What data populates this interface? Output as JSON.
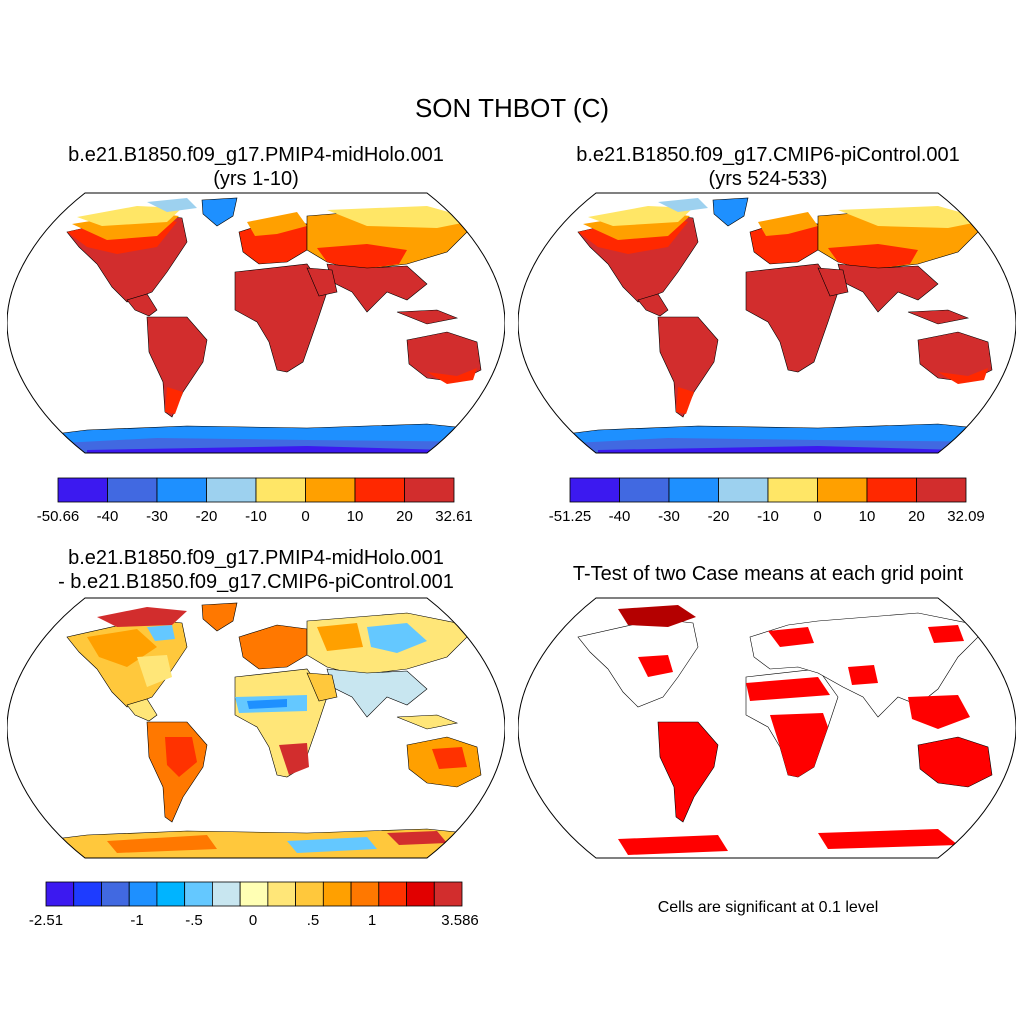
{
  "main_title": "SON THBOT (C)",
  "panels": [
    {
      "id": "case1",
      "title_line1": "b.e21.B1850.f09_g17.PMIP4-midHolo.001",
      "title_line2": "(yrs 1-10)",
      "colorbar": {
        "colors": [
          "#3c19f0",
          "#4169e1",
          "#1e90ff",
          "#9dd1ef",
          "#ffe666",
          "#ffa000",
          "#ff2800",
          "#d22d2d"
        ],
        "labels": [
          "-50.66",
          "-40",
          "-30",
          "-20",
          "-10",
          "0",
          "10",
          "20",
          "32.61"
        ]
      }
    },
    {
      "id": "case2",
      "title_line1": "b.e21.B1850.f09_g17.CMIP6-piControl.001",
      "title_line2": "(yrs 524-533)",
      "colorbar": {
        "colors": [
          "#3c19f0",
          "#4169e1",
          "#1e90ff",
          "#9dd1ef",
          "#ffe666",
          "#ffa000",
          "#ff2800",
          "#d22d2d"
        ],
        "labels": [
          "-51.25",
          "-40",
          "-30",
          "-20",
          "-10",
          "0",
          "10",
          "20",
          "32.09"
        ]
      }
    },
    {
      "id": "diff",
      "title_line1": "b.e21.B1850.f09_g17.PMIP4-midHolo.001",
      "title_line2": "- b.e21.B1850.f09_g17.CMIP6-piControl.001",
      "colorbar": {
        "colors": [
          "#3c19f0",
          "#1e3cff",
          "#4169e1",
          "#1e90ff",
          "#00b4ff",
          "#64c8ff",
          "#c8e6f0",
          "#ffffb4",
          "#ffe678",
          "#ffc83c",
          "#ffa000",
          "#ff7800",
          "#ff3200",
          "#e10000",
          "#d22d2d"
        ],
        "labels": [
          "-2.51",
          "-1",
          "-.5",
          "0",
          ".5",
          "1",
          "3.586"
        ]
      }
    },
    {
      "id": "ttest",
      "title_line1": "T-Test of two Case means at each grid point",
      "note": "Cells are significant at 0.1 level",
      "significant_color": "#ff0000",
      "alt_significant_color": "#b40000"
    }
  ]
}
